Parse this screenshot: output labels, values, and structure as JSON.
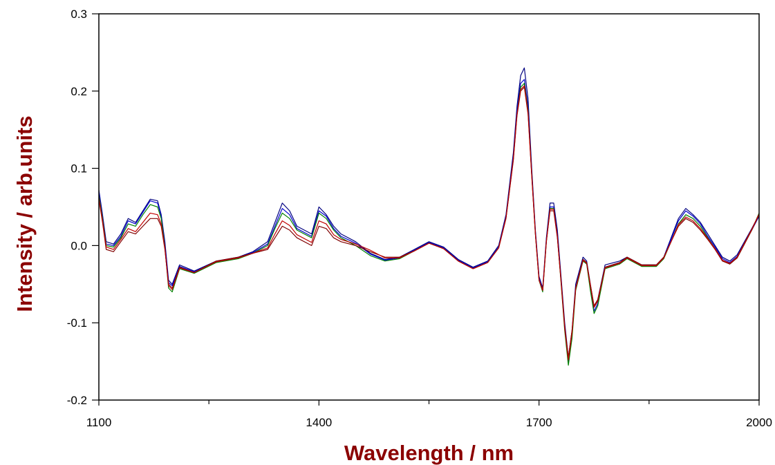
{
  "chart_data": {
    "type": "line",
    "title": "",
    "xlabel": "Wavelength / nm",
    "ylabel": "Intensity / arb.units",
    "xlim": [
      1100,
      2000
    ],
    "ylim": [
      -0.2,
      0.3
    ],
    "x_ticks": [
      "1100",
      "1400",
      "1700",
      "2000"
    ],
    "y_ticks": [
      "0.3",
      "0.2",
      "0.1",
      "0.0",
      "-0.1",
      "-0.2"
    ],
    "grid": false,
    "legend": "none",
    "label_color": "#8B0000",
    "x_minor_ticks": [
      1250,
      1550,
      1850
    ],
    "x": [
      1100,
      1105,
      1110,
      1120,
      1130,
      1140,
      1150,
      1160,
      1170,
      1180,
      1185,
      1190,
      1195,
      1200,
      1210,
      1230,
      1260,
      1290,
      1310,
      1330,
      1340,
      1350,
      1360,
      1370,
      1390,
      1400,
      1410,
      1420,
      1430,
      1450,
      1470,
      1490,
      1510,
      1530,
      1550,
      1570,
      1590,
      1610,
      1630,
      1645,
      1655,
      1665,
      1670,
      1675,
      1680,
      1685,
      1690,
      1695,
      1700,
      1705,
      1710,
      1715,
      1720,
      1725,
      1730,
      1735,
      1740,
      1745,
      1750,
      1760,
      1765,
      1770,
      1775,
      1780,
      1790,
      1810,
      1820,
      1840,
      1860,
      1870,
      1880,
      1890,
      1900,
      1910,
      1920,
      1930,
      1940,
      1950,
      1960,
      1970,
      1980,
      1990,
      2000
    ],
    "series": [
      {
        "color": "#000080",
        "values": [
          0.072,
          0.04,
          0.005,
          0.002,
          0.015,
          0.035,
          0.03,
          0.045,
          0.06,
          0.058,
          0.04,
          0.005,
          -0.045,
          -0.05,
          -0.025,
          -0.033,
          -0.02,
          -0.015,
          -0.008,
          0.005,
          0.03,
          0.055,
          0.045,
          0.025,
          0.015,
          0.05,
          0.04,
          0.025,
          0.015,
          0.005,
          -0.01,
          -0.018,
          -0.015,
          -0.005,
          0.005,
          -0.002,
          -0.018,
          -0.028,
          -0.02,
          0.0,
          0.04,
          0.12,
          0.18,
          0.22,
          0.23,
          0.19,
          0.1,
          0.02,
          -0.04,
          -0.055,
          0.01,
          0.055,
          0.055,
          0.02,
          -0.04,
          -0.1,
          -0.145,
          -0.11,
          -0.05,
          -0.015,
          -0.02,
          -0.05,
          -0.08,
          -0.07,
          -0.025,
          -0.02,
          -0.015,
          -0.025,
          -0.025,
          -0.015,
          0.01,
          0.035,
          0.048,
          0.04,
          0.03,
          0.015,
          0.0,
          -0.015,
          -0.02,
          -0.012,
          0.005,
          0.022,
          0.04
        ]
      },
      {
        "color": "#0000CD",
        "values": [
          0.07,
          0.038,
          0.002,
          0.0,
          0.012,
          0.032,
          0.028,
          0.043,
          0.058,
          0.055,
          0.038,
          0.002,
          -0.048,
          -0.052,
          -0.027,
          -0.034,
          -0.021,
          -0.016,
          -0.009,
          0.002,
          0.025,
          0.048,
          0.04,
          0.022,
          0.012,
          0.045,
          0.038,
          0.022,
          0.012,
          0.003,
          -0.011,
          -0.019,
          -0.016,
          -0.006,
          0.004,
          -0.003,
          -0.019,
          -0.029,
          -0.021,
          -0.002,
          0.038,
          0.115,
          0.175,
          0.21,
          0.215,
          0.18,
          0.095,
          0.018,
          -0.042,
          -0.058,
          0.008,
          0.05,
          0.05,
          0.015,
          -0.045,
          -0.105,
          -0.15,
          -0.115,
          -0.055,
          -0.018,
          -0.022,
          -0.055,
          -0.085,
          -0.075,
          -0.028,
          -0.022,
          -0.016,
          -0.026,
          -0.026,
          -0.016,
          0.008,
          0.032,
          0.045,
          0.038,
          0.028,
          0.012,
          -0.002,
          -0.017,
          -0.022,
          -0.014,
          0.003,
          0.02,
          0.038
        ]
      },
      {
        "color": "#008000",
        "values": [
          0.065,
          0.035,
          0.0,
          -0.002,
          0.01,
          0.028,
          0.025,
          0.04,
          0.053,
          0.05,
          0.035,
          -0.002,
          -0.055,
          -0.06,
          -0.03,
          -0.036,
          -0.022,
          -0.017,
          -0.01,
          0.0,
          0.022,
          0.042,
          0.035,
          0.02,
          0.01,
          0.042,
          0.035,
          0.02,
          0.01,
          0.0,
          -0.013,
          -0.02,
          -0.017,
          -0.007,
          0.003,
          -0.004,
          -0.02,
          -0.03,
          -0.022,
          -0.003,
          0.036,
          0.112,
          0.17,
          0.205,
          0.21,
          0.175,
          0.092,
          0.015,
          -0.045,
          -0.06,
          0.005,
          0.048,
          0.048,
          0.012,
          -0.048,
          -0.11,
          -0.155,
          -0.12,
          -0.058,
          -0.02,
          -0.024,
          -0.058,
          -0.088,
          -0.078,
          -0.03,
          -0.024,
          -0.017,
          -0.027,
          -0.027,
          -0.017,
          0.005,
          0.028,
          0.04,
          0.035,
          0.025,
          0.01,
          -0.004,
          -0.019,
          -0.024,
          -0.016,
          0.002,
          0.02,
          0.042
        ]
      },
      {
        "color": "#800000",
        "values": [
          0.06,
          0.03,
          -0.005,
          -0.008,
          0.005,
          0.018,
          0.015,
          0.025,
          0.035,
          0.035,
          0.025,
          -0.005,
          -0.05,
          -0.055,
          -0.028,
          -0.035,
          -0.02,
          -0.015,
          -0.01,
          -0.005,
          0.01,
          0.025,
          0.02,
          0.01,
          0.0,
          0.025,
          0.022,
          0.01,
          0.005,
          0.0,
          -0.008,
          -0.015,
          -0.015,
          -0.007,
          0.003,
          -0.004,
          -0.02,
          -0.03,
          -0.022,
          -0.003,
          0.035,
          0.11,
          0.168,
          0.2,
          0.205,
          0.17,
          0.09,
          0.015,
          -0.045,
          -0.058,
          0.005,
          0.045,
          0.045,
          0.01,
          -0.045,
          -0.105,
          -0.145,
          -0.11,
          -0.055,
          -0.018,
          -0.022,
          -0.05,
          -0.078,
          -0.07,
          -0.028,
          -0.022,
          -0.015,
          -0.025,
          -0.025,
          -0.015,
          0.005,
          0.025,
          0.035,
          0.03,
          0.02,
          0.008,
          -0.005,
          -0.02,
          -0.024,
          -0.016,
          0.002,
          0.02,
          0.04
        ]
      },
      {
        "color": "#C00000",
        "values": [
          0.062,
          0.032,
          -0.002,
          -0.005,
          0.008,
          0.022,
          0.018,
          0.03,
          0.042,
          0.04,
          0.028,
          -0.003,
          -0.052,
          -0.057,
          -0.029,
          -0.035,
          -0.021,
          -0.016,
          -0.01,
          -0.003,
          0.015,
          0.032,
          0.026,
          0.014,
          0.004,
          0.032,
          0.028,
          0.014,
          0.008,
          0.002,
          -0.006,
          -0.016,
          -0.016,
          -0.007,
          0.003,
          -0.004,
          -0.02,
          -0.03,
          -0.022,
          -0.003,
          0.036,
          0.112,
          0.17,
          0.202,
          0.207,
          0.172,
          0.092,
          0.016,
          -0.044,
          -0.058,
          0.006,
          0.047,
          0.047,
          0.012,
          -0.046,
          -0.107,
          -0.148,
          -0.113,
          -0.056,
          -0.019,
          -0.023,
          -0.052,
          -0.08,
          -0.072,
          -0.029,
          -0.023,
          -0.016,
          -0.026,
          -0.026,
          -0.016,
          0.005,
          0.027,
          0.037,
          0.032,
          0.022,
          0.009,
          -0.004,
          -0.019,
          -0.023,
          -0.015,
          0.003,
          0.021,
          0.041
        ]
      }
    ]
  }
}
